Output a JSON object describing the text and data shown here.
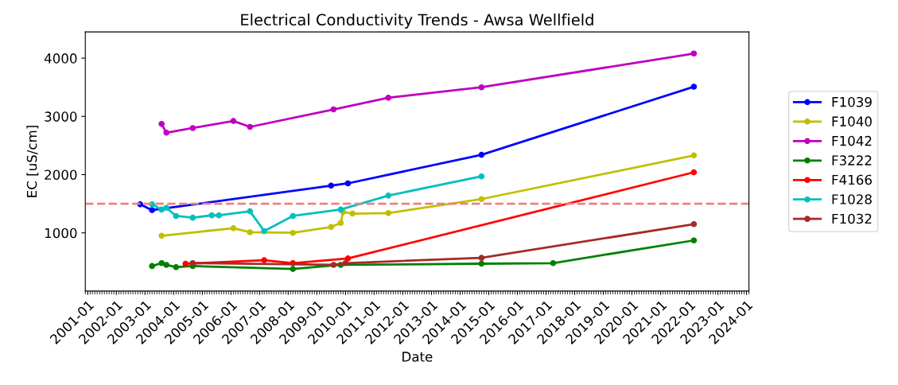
{
  "chart_data": {
    "type": "line",
    "title": "Electrical Conductivity Trends - Awsa Wellfield",
    "xlabel": "Date",
    "ylabel": "EC [uS/cm]",
    "series": [
      {
        "name": "F1039",
        "color": "#0000ff",
        "x": [
          "2002-11",
          "2003-04",
          "2009-07",
          "2010-02",
          "2014-10",
          "2022-03"
        ],
        "values": [
          1490,
          1390,
          1810,
          1850,
          2340,
          3510
        ]
      },
      {
        "name": "F1040",
        "color": "#bfbf00",
        "x": [
          "2003-08",
          "2006-02",
          "2006-09",
          "2008-03",
          "2009-07",
          "2009-11",
          "2009-12",
          "2010-04",
          "2011-07",
          "2014-10",
          "2022-03"
        ],
        "values": [
          950,
          1080,
          1010,
          1000,
          1100,
          1170,
          1360,
          1330,
          1340,
          1580,
          2330
        ]
      },
      {
        "name": "F1042",
        "color": "#bf00bf",
        "x": [
          "2003-08",
          "2003-10",
          "2004-09",
          "2006-02",
          "2006-09",
          "2009-08",
          "2011-07",
          "2014-10",
          "2022-03"
        ],
        "values": [
          2870,
          2720,
          2800,
          2920,
          2820,
          3120,
          3320,
          3500,
          4080
        ]
      },
      {
        "name": "F3222",
        "color": "#008000",
        "x": [
          "2003-04",
          "2003-08",
          "2003-10",
          "2004-02",
          "2004-09",
          "2008-03",
          "2009-11",
          "2014-10",
          "2017-04",
          "2022-03"
        ],
        "values": [
          430,
          480,
          450,
          410,
          430,
          380,
          450,
          470,
          480,
          870
        ]
      },
      {
        "name": "F4166",
        "color": "#ff0000",
        "x": [
          "2004-06",
          "2007-03",
          "2008-03",
          "2010-02",
          "2022-03"
        ],
        "values": [
          470,
          530,
          480,
          560,
          2040
        ]
      },
      {
        "name": "F1028",
        "color": "#00bfbf",
        "x": [
          "2003-04",
          "2003-08",
          "2003-10",
          "2004-02",
          "2004-09",
          "2005-05",
          "2005-08",
          "2006-09",
          "2007-03",
          "2008-03",
          "2009-11",
          "2011-07",
          "2014-10"
        ],
        "values": [
          1490,
          1400,
          1430,
          1290,
          1260,
          1300,
          1300,
          1370,
          1030,
          1290,
          1400,
          1640,
          1970
        ]
      },
      {
        "name": "F1032",
        "color": "#a52a2a",
        "x": [
          "2004-09",
          "2009-08",
          "2010-01",
          "2014-10",
          "2022-03"
        ],
        "values": [
          480,
          450,
          480,
          570,
          1150
        ]
      }
    ],
    "xlim": [
      "2000-12",
      "2024-02"
    ],
    "xticks": [
      "2001-01",
      "2002-01",
      "2003-01",
      "2004-01",
      "2005-01",
      "2006-01",
      "2007-01",
      "2008-01",
      "2009-01",
      "2010-01",
      "2011-01",
      "2012-01",
      "2013-01",
      "2014-01",
      "2015-01",
      "2016-01",
      "2017-01",
      "2018-01",
      "2019-01",
      "2020-01",
      "2021-01",
      "2022-01",
      "2023-01",
      "2024-01"
    ],
    "ylim": [
      0,
      4450
    ],
    "yticks": [
      1000,
      2000,
      3000,
      4000
    ],
    "ref_lines": [
      {
        "axis": "y",
        "value": 1500,
        "color": "#f08080",
        "line_style": "dashed"
      }
    ],
    "marker": "circle",
    "line_style": "solid",
    "legend": "right"
  }
}
